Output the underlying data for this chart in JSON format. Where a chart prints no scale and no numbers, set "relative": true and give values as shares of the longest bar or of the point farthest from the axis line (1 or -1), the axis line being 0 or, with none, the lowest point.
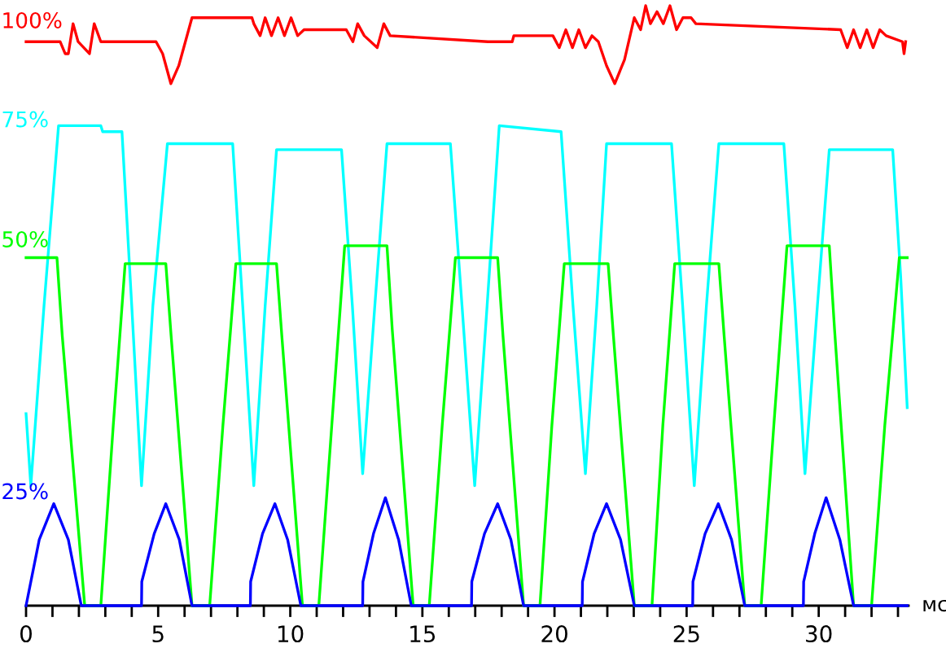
{
  "chart_data": {
    "type": "line",
    "relative": true,
    "xlabel": "мс",
    "xlim": [
      0,
      33.4
    ],
    "xticks": [
      0,
      {
        "value": 1,
        "label": null
      },
      {
        "value": 2,
        "label": null
      },
      {
        "value": 3,
        "label": null
      },
      {
        "value": 4,
        "label": null
      },
      5,
      {
        "value": 6,
        "label": null
      },
      {
        "value": 7,
        "label": null
      },
      {
        "value": 8,
        "label": null
      },
      {
        "value": 9,
        "label": null
      },
      10,
      {
        "value": 11,
        "label": null
      },
      {
        "value": 12,
        "label": null
      },
      {
        "value": 13,
        "label": null
      },
      {
        "value": 14,
        "label": null
      },
      15,
      {
        "value": 16,
        "label": null
      },
      {
        "value": 17,
        "label": null
      },
      {
        "value": 18,
        "label": null
      },
      {
        "value": 19,
        "label": null
      },
      20,
      {
        "value": 21,
        "label": null
      },
      {
        "value": 22,
        "label": null
      },
      {
        "value": 23,
        "label": null
      },
      {
        "value": 24,
        "label": null
      },
      25,
      {
        "value": 26,
        "label": null
      },
      {
        "value": 27,
        "label": null
      },
      {
        "value": 28,
        "label": null
      },
      {
        "value": 29,
        "label": null
      },
      30,
      {
        "value": 31,
        "label": null
      },
      {
        "value": 32,
        "label": null
      },
      {
        "value": 33,
        "label": null
      }
    ],
    "grid": false,
    "legend": false,
    "marker": "none",
    "line_style": "solid",
    "annotations": [
      "100%",
      "75%",
      "50%",
      "25%"
    ],
    "series": [
      {
        "color": "#ff0000",
        "x": [
          0,
          1.29,
          1.48,
          1.6,
          1.78,
          1.97,
          2.4,
          2.58,
          2.83,
          4.92,
          5.17,
          5.48,
          5.78,
          6.28,
          8.55,
          8.62,
          8.86,
          9.05,
          9.29,
          9.54,
          9.78,
          10.03,
          10.28,
          10.52,
          12.12,
          12.37,
          12.55,
          12.8,
          13.29,
          13.54,
          13.78,
          17.48,
          18.4,
          18.46,
          19.94,
          20.18,
          20.43,
          20.68,
          20.92,
          21.17,
          21.42,
          21.66,
          21.97,
          22.28,
          22.65,
          23.02,
          23.26,
          23.45,
          23.63,
          23.88,
          24.12,
          24.37,
          24.62,
          24.86,
          25.17,
          25.35,
          30.83,
          31.08,
          31.32,
          31.57,
          31.82,
          32.06,
          32.31,
          32.55,
          33.17,
          33.23,
          33.29
        ],
        "values": [
          0.94,
          0.94,
          0.92,
          0.92,
          0.97,
          0.94,
          0.92,
          0.97,
          0.94,
          0.94,
          0.92,
          0.87,
          0.9,
          0.98,
          0.98,
          0.97,
          0.95,
          0.98,
          0.95,
          0.98,
          0.95,
          0.98,
          0.95,
          0.96,
          0.96,
          0.94,
          0.97,
          0.95,
          0.93,
          0.97,
          0.95,
          0.94,
          0.94,
          0.95,
          0.95,
          0.93,
          0.96,
          0.93,
          0.96,
          0.93,
          0.95,
          0.94,
          0.9,
          0.87,
          0.91,
          0.98,
          0.96,
          1.0,
          0.97,
          0.99,
          0.97,
          1.0,
          0.96,
          0.98,
          0.98,
          0.97,
          0.96,
          0.93,
          0.96,
          0.93,
          0.96,
          0.93,
          0.96,
          0.95,
          0.94,
          0.92,
          0.94
        ]
      },
      {
        "color": "#00ffff",
        "x": [
          0,
          0.18,
          0.68,
          1.23,
          2.83,
          2.9,
          3.63,
          4.0,
          4.37,
          4.8,
          5.35,
          7.82,
          8.2,
          8.62,
          9.05,
          9.48,
          11.94,
          12.35,
          12.74,
          13.2,
          13.66,
          16.06,
          16.5,
          16.98,
          17.45,
          17.91,
          20.25,
          20.7,
          21.17,
          21.6,
          21.97,
          24.43,
          24.85,
          25.29,
          25.75,
          26.22,
          28.68,
          29.1,
          29.48,
          29.95,
          30.4,
          32.8,
          33.1,
          33.35
        ],
        "values": [
          0.32,
          0.2,
          0.5,
          0.8,
          0.8,
          0.79,
          0.79,
          0.5,
          0.2,
          0.5,
          0.77,
          0.77,
          0.5,
          0.2,
          0.5,
          0.76,
          0.76,
          0.5,
          0.22,
          0.5,
          0.77,
          0.77,
          0.5,
          0.2,
          0.5,
          0.8,
          0.79,
          0.5,
          0.22,
          0.5,
          0.77,
          0.77,
          0.5,
          0.2,
          0.5,
          0.77,
          0.77,
          0.5,
          0.22,
          0.5,
          0.76,
          0.76,
          0.55,
          0.33
        ]
      },
      {
        "color": "#00ff00",
        "x": [
          0,
          1.17,
          1.37,
          2.22,
          2.83,
          3.3,
          3.75,
          5.29,
          5.49,
          6.28,
          6.95,
          7.45,
          7.94,
          9.48,
          9.68,
          10.46,
          11.08,
          11.57,
          12.06,
          13.66,
          13.86,
          14.65,
          15.26,
          15.75,
          16.25,
          17.85,
          18.05,
          18.83,
          19.45,
          19.9,
          20.37,
          22.03,
          22.23,
          23.02,
          23.69,
          24.1,
          24.55,
          26.22,
          26.42,
          27.2,
          27.82,
          28.3,
          28.8,
          30.4,
          30.6,
          31.32,
          32.0,
          32.5,
          33.05,
          33.35
        ],
        "values": [
          0.58,
          0.58,
          0.45,
          0,
          0,
          0.3,
          0.57,
          0.57,
          0.45,
          0,
          0,
          0.3,
          0.57,
          0.57,
          0.45,
          0,
          0,
          0.3,
          0.6,
          0.6,
          0.46,
          0,
          0,
          0.3,
          0.58,
          0.58,
          0.45,
          0,
          0,
          0.3,
          0.57,
          0.57,
          0.45,
          0,
          0,
          0.3,
          0.57,
          0.57,
          0.45,
          0,
          0,
          0.3,
          0.6,
          0.6,
          0.46,
          0,
          0,
          0.3,
          0.58,
          0.58
        ]
      },
      {
        "color": "#0000ff",
        "x": [
          0,
          0.5,
          1.05,
          1.6,
          2.09,
          4.37,
          4.38,
          4.85,
          5.29,
          5.8,
          6.28,
          8.49,
          8.5,
          8.95,
          9.42,
          9.9,
          10.4,
          12.74,
          12.75,
          13.15,
          13.6,
          14.1,
          14.58,
          16.86,
          16.87,
          17.35,
          17.85,
          18.35,
          18.83,
          21.05,
          21.06,
          21.5,
          21.97,
          22.5,
          23.02,
          25.23,
          25.24,
          25.7,
          26.2,
          26.7,
          27.2,
          29.42,
          29.43,
          29.85,
          30.28,
          30.8,
          31.32,
          33.35
        ],
        "values": [
          0,
          0.11,
          0.17,
          0.11,
          0,
          0,
          0.04,
          0.12,
          0.17,
          0.11,
          0,
          0,
          0.04,
          0.12,
          0.17,
          0.11,
          0,
          0,
          0.04,
          0.12,
          0.18,
          0.11,
          0,
          0,
          0.04,
          0.12,
          0.17,
          0.11,
          0,
          0,
          0.04,
          0.12,
          0.17,
          0.11,
          0,
          0,
          0.04,
          0.12,
          0.17,
          0.11,
          0,
          0,
          0.04,
          0.12,
          0.18,
          0.11,
          0,
          0
        ]
      }
    ]
  }
}
